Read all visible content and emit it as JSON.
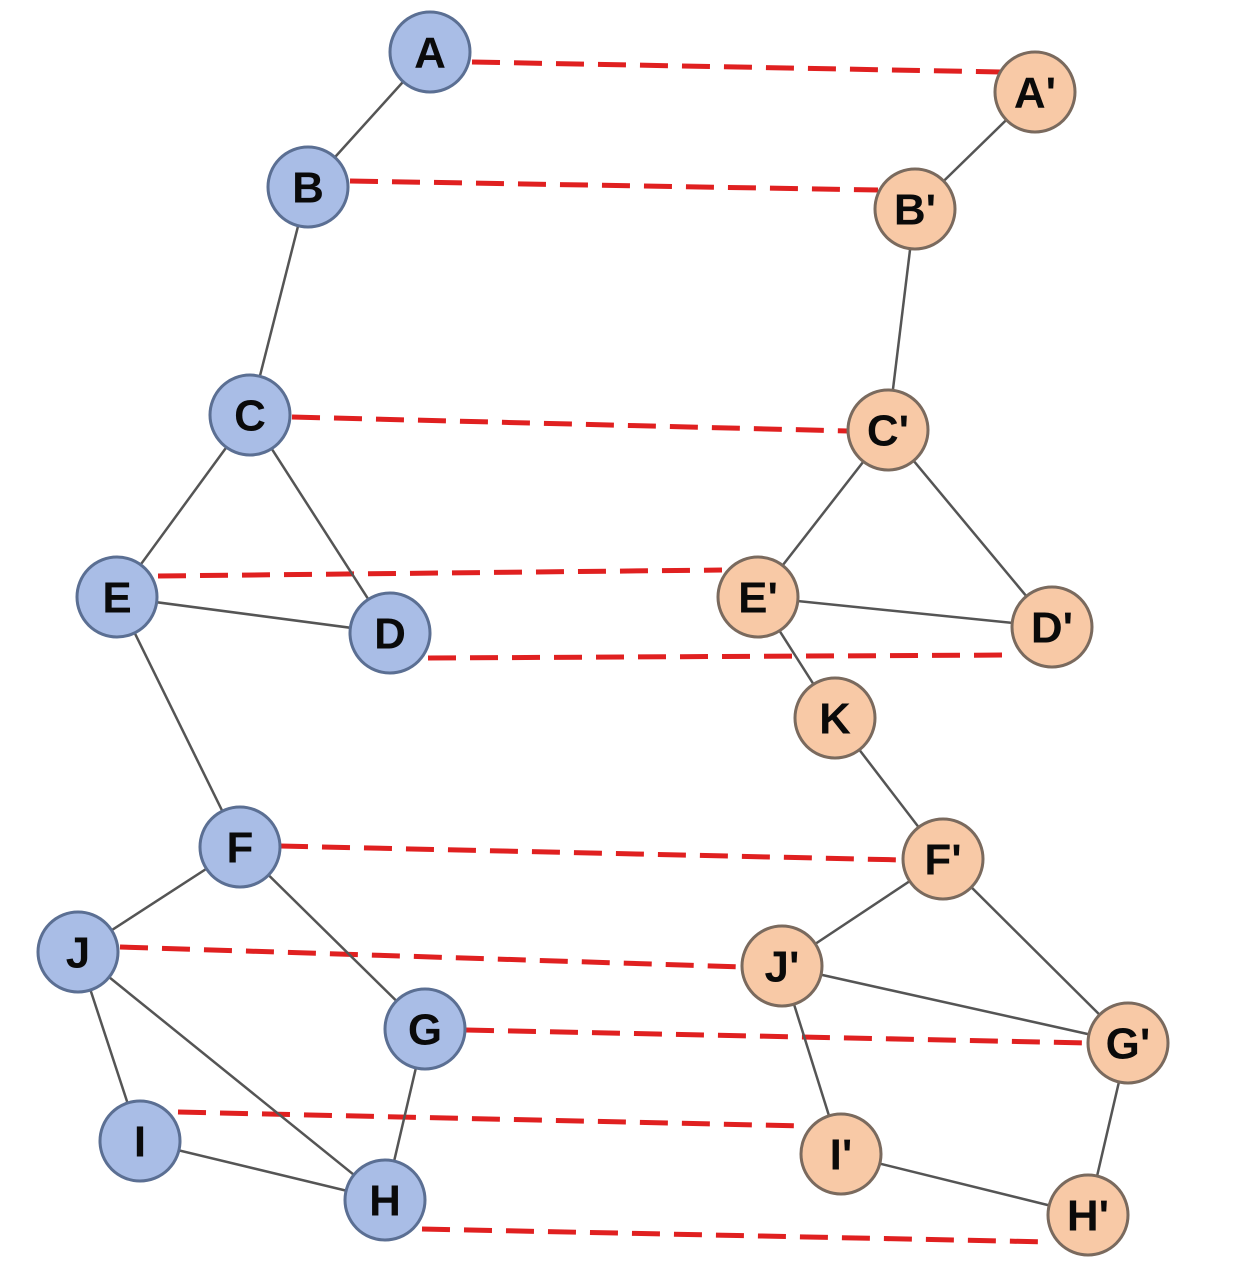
{
  "graph": {
    "colors": {
      "left_node": "#a9bde6",
      "right_node": "#f8c9a6",
      "edge": "#555555",
      "match": "#e02020"
    },
    "left_nodes": [
      {
        "id": "A",
        "label": "A"
      },
      {
        "id": "B",
        "label": "B"
      },
      {
        "id": "C",
        "label": "C"
      },
      {
        "id": "D",
        "label": "D"
      },
      {
        "id": "E",
        "label": "E"
      },
      {
        "id": "F",
        "label": "F"
      },
      {
        "id": "G",
        "label": "G"
      },
      {
        "id": "H",
        "label": "H"
      },
      {
        "id": "I",
        "label": "I"
      },
      {
        "id": "J",
        "label": "J"
      }
    ],
    "right_nodes": [
      {
        "id": "A'",
        "label": "A'"
      },
      {
        "id": "B'",
        "label": "B'"
      },
      {
        "id": "C'",
        "label": "C'"
      },
      {
        "id": "D'",
        "label": "D'"
      },
      {
        "id": "E'",
        "label": "E'"
      },
      {
        "id": "K",
        "label": "K"
      },
      {
        "id": "F'",
        "label": "F'"
      },
      {
        "id": "G'",
        "label": "G'"
      },
      {
        "id": "H'",
        "label": "H'"
      },
      {
        "id": "I'",
        "label": "I'"
      },
      {
        "id": "J'",
        "label": "J'"
      }
    ],
    "left_edges": [
      [
        "A",
        "B"
      ],
      [
        "B",
        "C"
      ],
      [
        "C",
        "E"
      ],
      [
        "C",
        "D"
      ],
      [
        "E",
        "D"
      ],
      [
        "E",
        "F"
      ],
      [
        "F",
        "J"
      ],
      [
        "F",
        "G"
      ],
      [
        "G",
        "H"
      ],
      [
        "J",
        "I"
      ],
      [
        "J",
        "H"
      ],
      [
        "I",
        "H"
      ]
    ],
    "right_edges": [
      [
        "A'",
        "B'"
      ],
      [
        "B'",
        "C'"
      ],
      [
        "C'",
        "E'"
      ],
      [
        "C'",
        "D'"
      ],
      [
        "E'",
        "D'"
      ],
      [
        "E'",
        "K"
      ],
      [
        "K",
        "F'"
      ],
      [
        "F'",
        "J'"
      ],
      [
        "F'",
        "G'"
      ],
      [
        "J'",
        "G'"
      ],
      [
        "J'",
        "I'"
      ],
      [
        "I'",
        "H'"
      ],
      [
        "G'",
        "H'"
      ]
    ],
    "correspondences": [
      [
        "A",
        "A'"
      ],
      [
        "B",
        "B'"
      ],
      [
        "C",
        "C'"
      ],
      [
        "E",
        "E'"
      ],
      [
        "D",
        "D'"
      ],
      [
        "F",
        "F'"
      ],
      [
        "J",
        "J'"
      ],
      [
        "G",
        "G'"
      ],
      [
        "I",
        "I'"
      ],
      [
        "H",
        "H'"
      ]
    ]
  }
}
